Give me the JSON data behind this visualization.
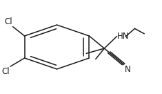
{
  "background": "#ffffff",
  "line_color": "#1a1a1a",
  "text_color": "#1a1a1a",
  "line_width": 1.1,
  "figsize": [
    2.35,
    1.36
  ],
  "dpi": 100,
  "cl1_label": "Cl",
  "cl2_label": "Cl",
  "hn_label": "HN",
  "n_label": "N",
  "font_size": 8.5
}
